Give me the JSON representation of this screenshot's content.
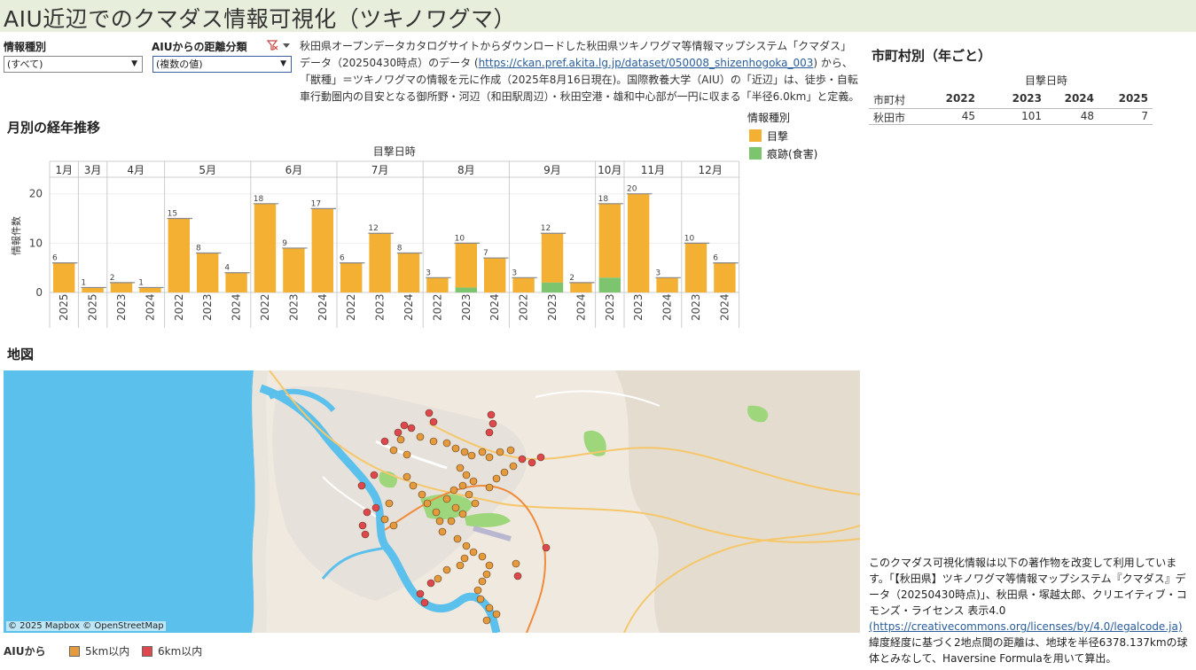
{
  "header": {
    "title": "AIU近辺でのクマダス情報可視化（ツキノワグマ）"
  },
  "filters": {
    "type": {
      "label": "情報種別",
      "value": "(すべて)"
    },
    "distance": {
      "label": "AIUからの距離分類",
      "value": "(複数の値)",
      "filter_icon": "filter-clear-icon"
    }
  },
  "description": {
    "text_before": "秋田県オープンデータカタログサイトからダウンロードした秋田県ツキノワグマ等情報マップシステム「クマダス」データ（20250430時点）のデータ (",
    "link": "https://ckan.pref.akita.lg.jp/dataset/050008_shizenhogoka_003",
    "text_after": ") から、「獣種」＝ツキノワグマの情報を元に作成（2025年8月16日現在)。国際教養大学（AIU）の「近辺」は、徒歩・自転車行動圏内の目安となる御所野・河辺（和田駅周辺）・秋田空港・雄和中心部が一円に収まる「半径6.0km」と定義。"
  },
  "monthly": {
    "title": "月別の経年推移",
    "column_header": "目撃日時",
    "y_label": "情報件数"
  },
  "legend": {
    "title": "情報種別",
    "items": [
      {
        "label": "目撃",
        "color": "#f3b033"
      },
      {
        "label": "痕跡(食害)",
        "color": "#7dc46e"
      }
    ]
  },
  "chart_data": {
    "type": "bar",
    "stacked": true,
    "ylabel": "情報件数",
    "yticks": [
      0,
      10,
      20
    ],
    "ylim": [
      0,
      23
    ],
    "x_header": "目撃日時",
    "months": [
      {
        "month": "1月",
        "bars": [
          {
            "year": "2025",
            "total": 6,
            "trace": 0
          }
        ]
      },
      {
        "month": "3月",
        "bars": [
          {
            "year": "2025",
            "total": 1,
            "trace": 0
          }
        ]
      },
      {
        "month": "4月",
        "bars": [
          {
            "year": "2023",
            "total": 2,
            "trace": 0
          },
          {
            "year": "2024",
            "total": 1,
            "trace": 0
          }
        ]
      },
      {
        "month": "5月",
        "bars": [
          {
            "year": "2022",
            "total": 15,
            "trace": 0
          },
          {
            "year": "2023",
            "total": 8,
            "trace": 0
          },
          {
            "year": "2024",
            "total": 4,
            "trace": 0
          }
        ]
      },
      {
        "month": "6月",
        "bars": [
          {
            "year": "2022",
            "total": 18,
            "trace": 0
          },
          {
            "year": "2023",
            "total": 9,
            "trace": 0
          },
          {
            "year": "2024",
            "total": 17,
            "trace": 0
          }
        ]
      },
      {
        "month": "7月",
        "bars": [
          {
            "year": "2022",
            "total": 6,
            "trace": 0
          },
          {
            "year": "2023",
            "total": 12,
            "trace": 0
          },
          {
            "year": "2024",
            "total": 8,
            "trace": 0
          }
        ]
      },
      {
        "month": "8月",
        "bars": [
          {
            "year": "2022",
            "total": 3,
            "trace": 0
          },
          {
            "year": "2023",
            "total": 10,
            "trace": 1
          },
          {
            "year": "2024",
            "total": 7,
            "trace": 0
          }
        ]
      },
      {
        "month": "9月",
        "bars": [
          {
            "year": "2022",
            "total": 3,
            "trace": 0
          },
          {
            "year": "2023",
            "total": 12,
            "trace": 2
          },
          {
            "year": "2024",
            "total": 2,
            "trace": 0
          }
        ]
      },
      {
        "month": "10月",
        "bars": [
          {
            "year": "2023",
            "total": 18,
            "trace": 3
          }
        ]
      },
      {
        "month": "11月",
        "bars": [
          {
            "year": "2023",
            "total": 20,
            "trace": 0
          },
          {
            "year": "2024",
            "total": 3,
            "trace": 0
          }
        ]
      },
      {
        "month": "12月",
        "bars": [
          {
            "year": "2023",
            "total": 10,
            "trace": 0
          },
          {
            "year": "2024",
            "total": 6,
            "trace": 0
          }
        ]
      }
    ]
  },
  "city_table": {
    "title": "市町村別（年ごと）",
    "column_group": "目撃日時",
    "row_header": "市町村",
    "years": [
      "2022",
      "2023",
      "2024",
      "2025"
    ],
    "rows": [
      {
        "city": "秋田市",
        "values": [
          "45",
          "101",
          "48",
          "7"
        ]
      }
    ]
  },
  "map": {
    "title": "地図",
    "credit": "© 2025 Mapbox  © OpenStreetMap",
    "legend_title": "AIUから",
    "legend": [
      {
        "label": "5km以内",
        "color": "#e59a3c"
      },
      {
        "label": "6km以内",
        "color": "#e0474c"
      }
    ]
  },
  "attribution": {
    "text1": "このクマダス可視化情報は以下の著作物を改変して利用しています。「【秋田県】ツキノワグマ等情報マップシステム『クマダス』データ（20250430時点)」、秋田県・塚越太郎、クリエイティブ・コモンズ・ライセンス 表示4.0",
    "link": "(https://creativecommons.org/licenses/by/4.0/legalcode.ja)",
    "text2": "緯度経度に基づく2地点間の距離は、地球を半径6378.137kmの球体とみなして、Haversine Formulaを用いて算出。"
  }
}
